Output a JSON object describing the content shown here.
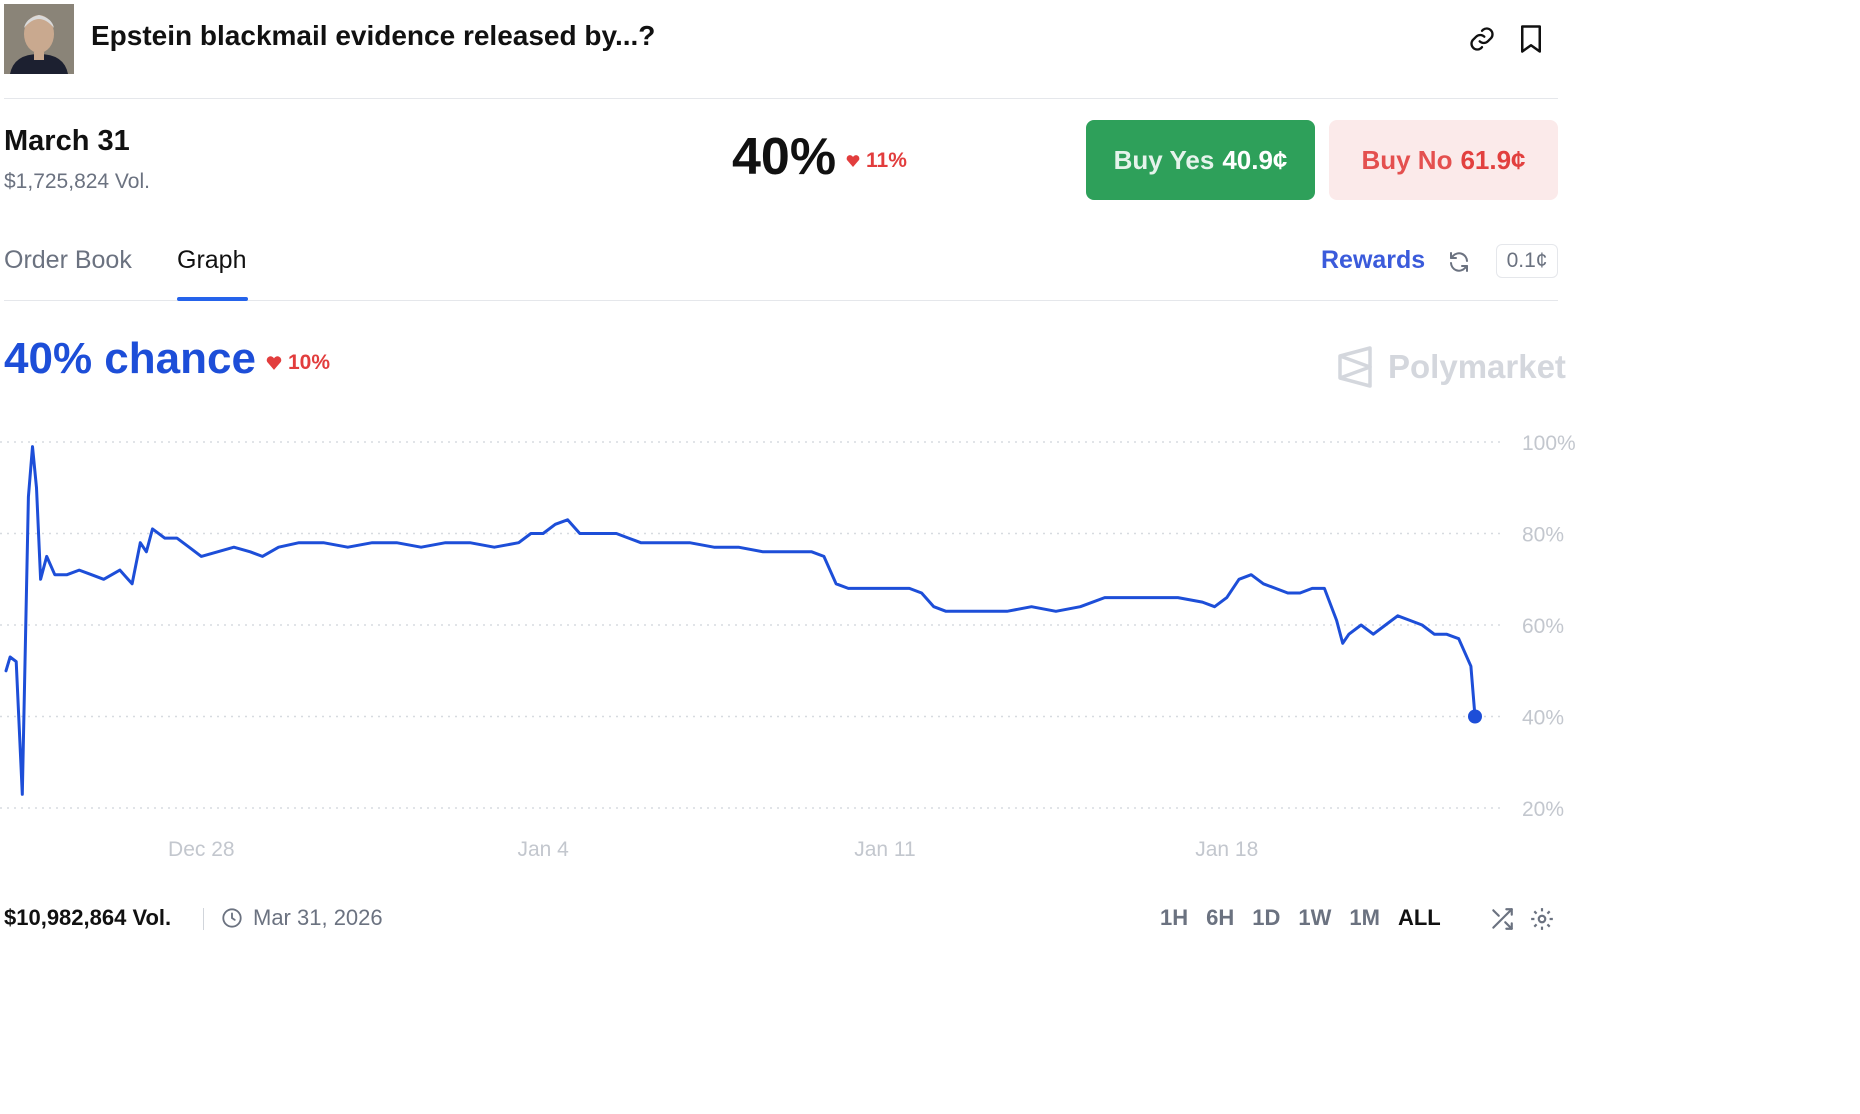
{
  "header": {
    "title": "Epstein blackmail evidence released by...?",
    "avatar_alt": "market-image"
  },
  "market": {
    "outcome": "March 31",
    "volume": "$1,725,824 Vol.",
    "price": "40%",
    "price_change": "11%",
    "buy_yes_label": "Buy Yes",
    "buy_yes_price": "40.9¢",
    "buy_no_label": "Buy No",
    "buy_no_price": "61.9¢"
  },
  "tabs": {
    "order_book": "Order Book",
    "graph": "Graph",
    "active": "Graph",
    "rewards": "Rewards",
    "tick_size": "0.1¢"
  },
  "chance": {
    "text": "40% chance",
    "change": "10%",
    "brand": "Polymarket"
  },
  "footer": {
    "volume": "$10,982,864 Vol.",
    "end_date": "Mar 31, 2026",
    "ranges": [
      "1H",
      "6H",
      "1D",
      "1W",
      "1M",
      "ALL"
    ],
    "active_range": "ALL"
  },
  "colors": {
    "line": "#1d4ed8",
    "yes": "#2ea05a",
    "no": "#e2403f",
    "down": "#e23d3d"
  },
  "chart_data": {
    "type": "line",
    "title": "",
    "xlabel": "",
    "ylabel": "",
    "x_ticks": [
      "Dec 28",
      "Jan 4",
      "Jan 11",
      "Jan 18"
    ],
    "y_ticks": [
      "100%",
      "80%",
      "60%",
      "40%",
      "20%"
    ],
    "ylim": [
      20,
      100
    ],
    "xlim": [
      "2025-12-24",
      "2026-01-23"
    ],
    "grid": "dotted horizontal",
    "series": [
      {
        "name": "",
        "points": [
          [
            "2025-12-24 00:00",
            50
          ],
          [
            "2025-12-24 02:00",
            53
          ],
          [
            "2025-12-24 05:00",
            52
          ],
          [
            "2025-12-24 08:00",
            23
          ],
          [
            "2025-12-24 11:00",
            88
          ],
          [
            "2025-12-24 13:00",
            99
          ],
          [
            "2025-12-24 15:00",
            90
          ],
          [
            "2025-12-24 17:00",
            70
          ],
          [
            "2025-12-24 20:00",
            75
          ],
          [
            "2025-12-25 00:00",
            71
          ],
          [
            "2025-12-25 06:00",
            71
          ],
          [
            "2025-12-25 12:00",
            72
          ],
          [
            "2025-12-25 18:00",
            71
          ],
          [
            "2025-12-26 00:00",
            70
          ],
          [
            "2025-12-26 08:00",
            72
          ],
          [
            "2025-12-26 14:00",
            69
          ],
          [
            "2025-12-26 18:00",
            78
          ],
          [
            "2025-12-26 21:00",
            76
          ],
          [
            "2025-12-27 00:00",
            81
          ],
          [
            "2025-12-27 06:00",
            79
          ],
          [
            "2025-12-27 12:00",
            79
          ],
          [
            "2025-12-27 18:00",
            77
          ],
          [
            "2025-12-28 00:00",
            75
          ],
          [
            "2025-12-28 08:00",
            76
          ],
          [
            "2025-12-28 16:00",
            77
          ],
          [
            "2025-12-29 00:00",
            76
          ],
          [
            "2025-12-29 06:00",
            75
          ],
          [
            "2025-12-29 14:00",
            77
          ],
          [
            "2025-12-30 00:00",
            78
          ],
          [
            "2025-12-30 12:00",
            78
          ],
          [
            "2025-12-31 00:00",
            77
          ],
          [
            "2025-12-31 12:00",
            78
          ],
          [
            "2026-01-01 00:00",
            78
          ],
          [
            "2026-01-01 12:00",
            77
          ],
          [
            "2026-01-02 00:00",
            78
          ],
          [
            "2026-01-02 12:00",
            78
          ],
          [
            "2026-01-03 00:00",
            77
          ],
          [
            "2026-01-03 12:00",
            78
          ],
          [
            "2026-01-03 18:00",
            80
          ],
          [
            "2026-01-04 00:00",
            80
          ],
          [
            "2026-01-04 06:00",
            82
          ],
          [
            "2026-01-04 12:00",
            83
          ],
          [
            "2026-01-04 18:00",
            80
          ],
          [
            "2026-01-05 00:00",
            80
          ],
          [
            "2026-01-05 12:00",
            80
          ],
          [
            "2026-01-05 18:00",
            79
          ],
          [
            "2026-01-06 00:00",
            78
          ],
          [
            "2026-01-06 12:00",
            78
          ],
          [
            "2026-01-07 00:00",
            78
          ],
          [
            "2026-01-07 12:00",
            77
          ],
          [
            "2026-01-08 00:00",
            77
          ],
          [
            "2026-01-08 12:00",
            76
          ],
          [
            "2026-01-09 00:00",
            76
          ],
          [
            "2026-01-09 12:00",
            76
          ],
          [
            "2026-01-09 18:00",
            75
          ],
          [
            "2026-01-10 00:00",
            69
          ],
          [
            "2026-01-10 06:00",
            68
          ],
          [
            "2026-01-10 12:00",
            68
          ],
          [
            "2026-01-11 00:00",
            68
          ],
          [
            "2026-01-11 12:00",
            68
          ],
          [
            "2026-01-11 18:00",
            67
          ],
          [
            "2026-01-12 00:00",
            64
          ],
          [
            "2026-01-12 06:00",
            63
          ],
          [
            "2026-01-12 12:00",
            63
          ],
          [
            "2026-01-13 00:00",
            63
          ],
          [
            "2026-01-13 12:00",
            63
          ],
          [
            "2026-01-14 00:00",
            64
          ],
          [
            "2026-01-14 12:00",
            63
          ],
          [
            "2026-01-15 00:00",
            64
          ],
          [
            "2026-01-15 12:00",
            66
          ],
          [
            "2026-01-16 00:00",
            66
          ],
          [
            "2026-01-16 12:00",
            66
          ],
          [
            "2026-01-17 00:00",
            66
          ],
          [
            "2026-01-17 12:00",
            65
          ],
          [
            "2026-01-17 18:00",
            64
          ],
          [
            "2026-01-18 00:00",
            66
          ],
          [
            "2026-01-18 06:00",
            70
          ],
          [
            "2026-01-18 12:00",
            71
          ],
          [
            "2026-01-18 18:00",
            69
          ],
          [
            "2026-01-19 00:00",
            68
          ],
          [
            "2026-01-19 06:00",
            67
          ],
          [
            "2026-01-19 12:00",
            67
          ],
          [
            "2026-01-19 18:00",
            68
          ],
          [
            "2026-01-20 00:00",
            68
          ],
          [
            "2026-01-20 06:00",
            61
          ],
          [
            "2026-01-20 09:00",
            56
          ],
          [
            "2026-01-20 12:00",
            58
          ],
          [
            "2026-01-20 18:00",
            60
          ],
          [
            "2026-01-21 00:00",
            58
          ],
          [
            "2026-01-21 06:00",
            60
          ],
          [
            "2026-01-21 12:00",
            62
          ],
          [
            "2026-01-21 18:00",
            61
          ],
          [
            "2026-01-22 00:00",
            60
          ],
          [
            "2026-01-22 06:00",
            58
          ],
          [
            "2026-01-22 12:00",
            58
          ],
          [
            "2026-01-22 18:00",
            57
          ],
          [
            "2026-01-23 00:00",
            51
          ],
          [
            "2026-01-23 02:00",
            40
          ]
        ]
      }
    ]
  }
}
